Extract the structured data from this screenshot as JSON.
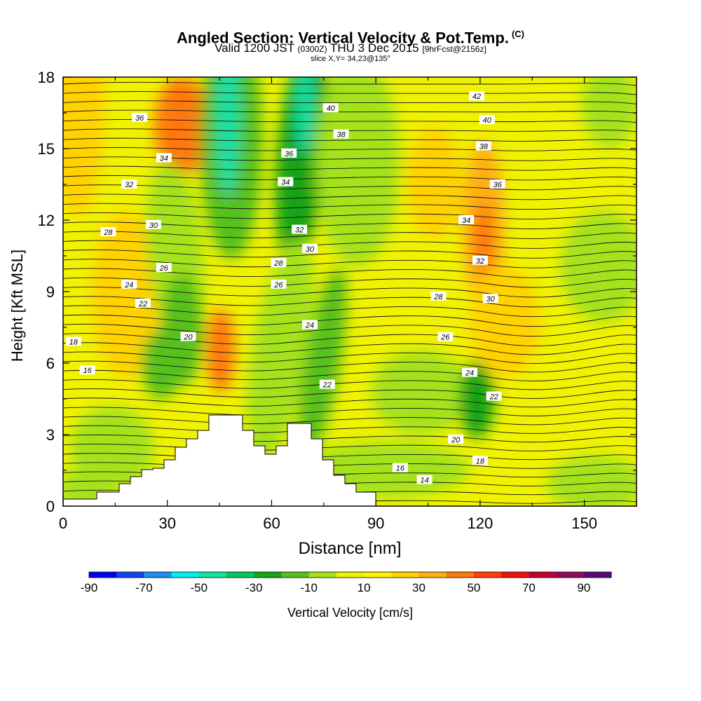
{
  "title": {
    "main": "Angled Section: Vertical Velocity & Pot.Temp.",
    "copyright": "(C)",
    "valid_pre": "Valid 1200 JST",
    "valid_z": "(0300Z)",
    "valid_post": "THU 3 Dec 2015",
    "fcst": "[9hrFcst@2156z]",
    "slice": "slice X,Y= 34,23@135°"
  },
  "chart_data": {
    "type": "heatmap",
    "title": "Angled Section: Vertical Velocity & Pot.Temp.",
    "xlabel": "Distance [nm]",
    "ylabel": "Height [Kft MSL]",
    "xlim": [
      0,
      165
    ],
    "ylim": [
      0,
      18
    ],
    "x_ticks": [
      "0",
      "30",
      "60",
      "90",
      "120",
      "150"
    ],
    "y_ticks": [
      "0",
      "3",
      "6",
      "9",
      "12",
      "15",
      "18"
    ],
    "colorbar": {
      "label": "Vertical Velocity [cm/s]",
      "tick_labels": [
        "-90",
        "-70",
        "-50",
        "-30",
        "-10",
        "10",
        "30",
        "50",
        "70",
        "90"
      ],
      "colors": [
        "#0000ee",
        "#0f45f0",
        "#1c8ff2",
        "#00f0f0",
        "#13e0a2",
        "#00c864",
        "#14a414",
        "#56c01a",
        "#a4e21a",
        "#e8f400",
        "#fff200",
        "#ffd200",
        "#ffae14",
        "#ff780a",
        "#ff3c0a",
        "#f01010",
        "#c00032",
        "#8c0a5a",
        "#5a0a78"
      ]
    },
    "contour_labels": [
      {
        "text": "42",
        "x": 119,
        "y": 17.2
      },
      {
        "text": "40",
        "x": 77,
        "y": 16.7
      },
      {
        "text": "40",
        "x": 122,
        "y": 16.2
      },
      {
        "text": "38",
        "x": 80,
        "y": 15.6
      },
      {
        "text": "38",
        "x": 121,
        "y": 15.1
      },
      {
        "text": "36",
        "x": 22,
        "y": 16.3
      },
      {
        "text": "36",
        "x": 65,
        "y": 14.8
      },
      {
        "text": "36",
        "x": 125,
        "y": 13.5
      },
      {
        "text": "34",
        "x": 29,
        "y": 14.6
      },
      {
        "text": "34",
        "x": 64,
        "y": 13.6
      },
      {
        "text": "34",
        "x": 116,
        "y": 12.0
      },
      {
        "text": "32",
        "x": 19,
        "y": 13.5
      },
      {
        "text": "32",
        "x": 68,
        "y": 11.6
      },
      {
        "text": "32",
        "x": 120,
        "y": 10.3
      },
      {
        "text": "30",
        "x": 26,
        "y": 11.8
      },
      {
        "text": "30",
        "x": 71,
        "y": 10.8
      },
      {
        "text": "30",
        "x": 123,
        "y": 8.7
      },
      {
        "text": "28",
        "x": 13,
        "y": 11.5
      },
      {
        "text": "28",
        "x": 62,
        "y": 10.2
      },
      {
        "text": "28",
        "x": 108,
        "y": 8.8
      },
      {
        "text": "26",
        "x": 29,
        "y": 10.0
      },
      {
        "text": "26",
        "x": 62,
        "y": 9.3
      },
      {
        "text": "26",
        "x": 110,
        "y": 7.1
      },
      {
        "text": "24",
        "x": 19,
        "y": 9.3
      },
      {
        "text": "24",
        "x": 71,
        "y": 7.6
      },
      {
        "text": "24",
        "x": 117,
        "y": 5.6
      },
      {
        "text": "22",
        "x": 23,
        "y": 8.5
      },
      {
        "text": "22",
        "x": 76,
        "y": 5.1
      },
      {
        "text": "22",
        "x": 124,
        "y": 4.6
      },
      {
        "text": "20",
        "x": 36,
        "y": 7.1
      },
      {
        "text": "20",
        "x": 113,
        "y": 2.8
      },
      {
        "text": "18",
        "x": 3,
        "y": 6.9
      },
      {
        "text": "18",
        "x": 120,
        "y": 1.9
      },
      {
        "text": "16",
        "x": 7,
        "y": 5.7
      },
      {
        "text": "16",
        "x": 97,
        "y": 1.6
      },
      {
        "text": "14",
        "x": 104,
        "y": 1.1
      }
    ]
  }
}
